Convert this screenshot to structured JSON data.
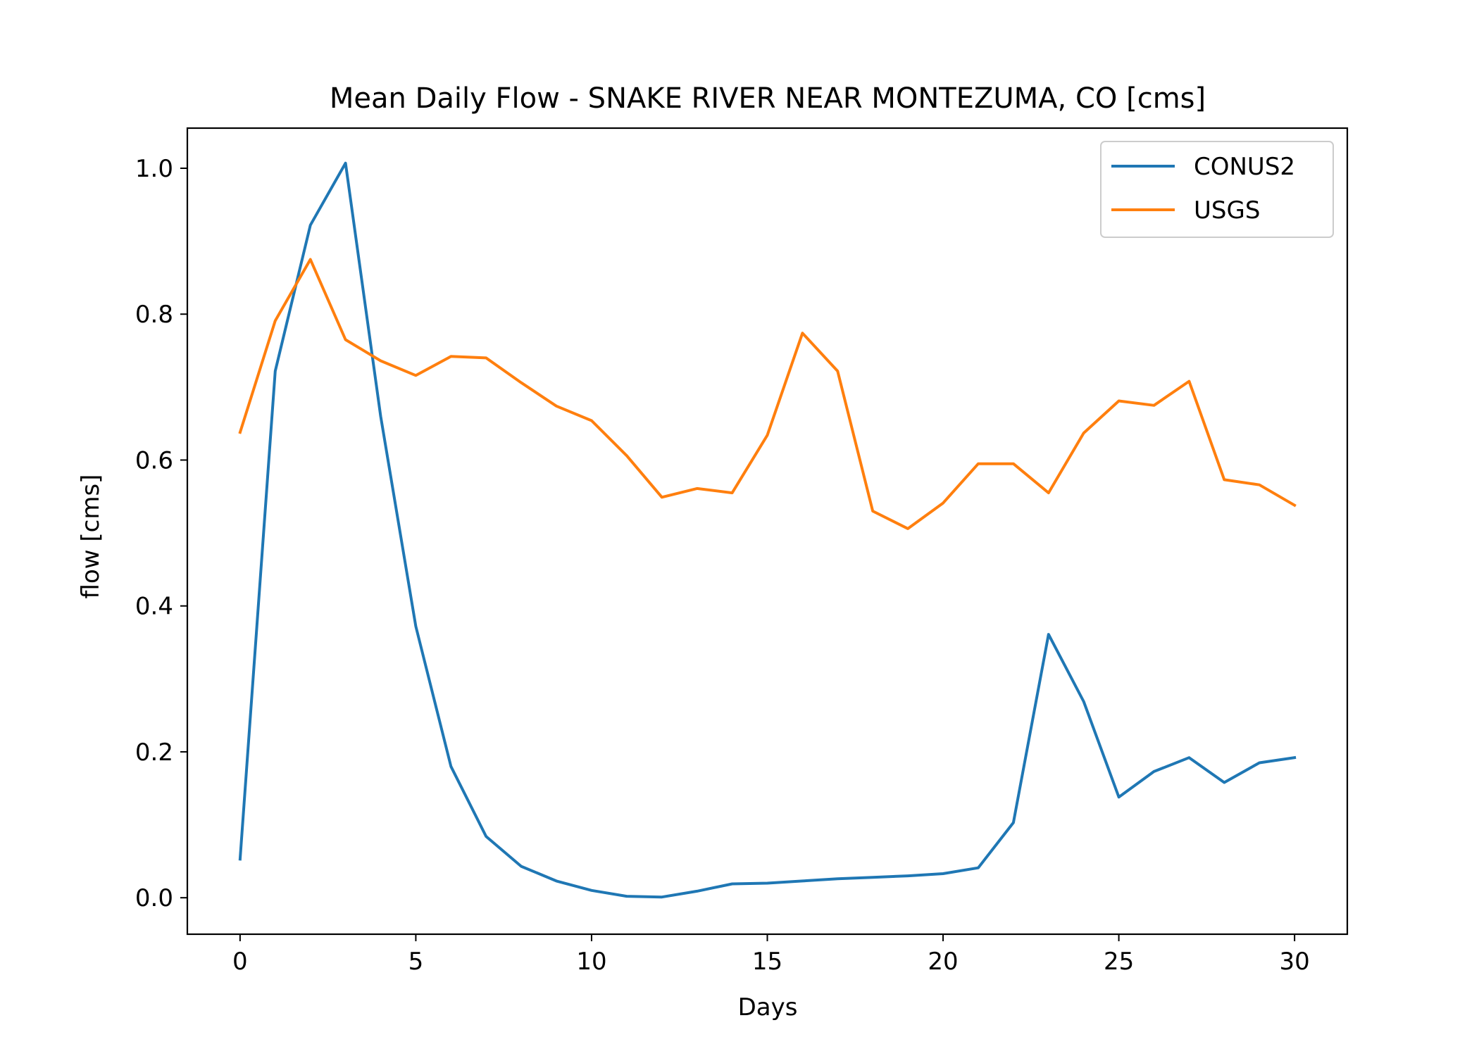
{
  "chart_data": {
    "type": "line",
    "title": "Mean Daily Flow - SNAKE RIVER NEAR MONTEZUMA, CO [cms]",
    "xlabel": "Days",
    "ylabel": "flow [cms]",
    "xlim": [
      -1.5,
      31.5
    ],
    "ylim": [
      -0.05,
      1.055
    ],
    "xticks": [
      0,
      5,
      10,
      15,
      20,
      25,
      30
    ],
    "yticks": [
      0.0,
      0.2,
      0.4,
      0.6,
      0.8,
      1.0
    ],
    "xtick_labels": [
      "0",
      "5",
      "10",
      "15",
      "20",
      "25",
      "30"
    ],
    "ytick_labels": [
      "0.0",
      "0.2",
      "0.4",
      "0.6",
      "0.8",
      "1.0"
    ],
    "grid": false,
    "legend_position": "top-right",
    "x": [
      0,
      1,
      2,
      3,
      4,
      5,
      6,
      7,
      8,
      9,
      10,
      11,
      12,
      13,
      14,
      15,
      16,
      17,
      18,
      19,
      20,
      21,
      22,
      23,
      24,
      25,
      26,
      27,
      28,
      29,
      30
    ],
    "series": [
      {
        "name": "CONUS2",
        "color": "#1f77b4",
        "values": [
          0.053,
          0.722,
          0.922,
          1.007,
          0.66,
          0.372,
          0.18,
          0.084,
          0.043,
          0.023,
          0.01,
          0.002,
          0.001,
          0.009,
          0.019,
          0.02,
          0.023,
          0.026,
          0.028,
          0.03,
          0.033,
          0.041,
          0.103,
          0.361,
          0.269,
          0.138,
          0.173,
          0.192,
          0.158,
          0.185,
          0.192
        ]
      },
      {
        "name": "USGS",
        "color": "#ff7f0e",
        "values": [
          0.638,
          0.791,
          0.875,
          0.765,
          0.736,
          0.716,
          0.742,
          0.74,
          0.706,
          0.674,
          0.654,
          0.606,
          0.549,
          0.561,
          0.555,
          0.634,
          0.774,
          0.722,
          0.53,
          0.506,
          0.541,
          0.595,
          0.595,
          0.555,
          0.637,
          0.681,
          0.675,
          0.708,
          0.573,
          0.566,
          0.538
        ]
      }
    ]
  }
}
